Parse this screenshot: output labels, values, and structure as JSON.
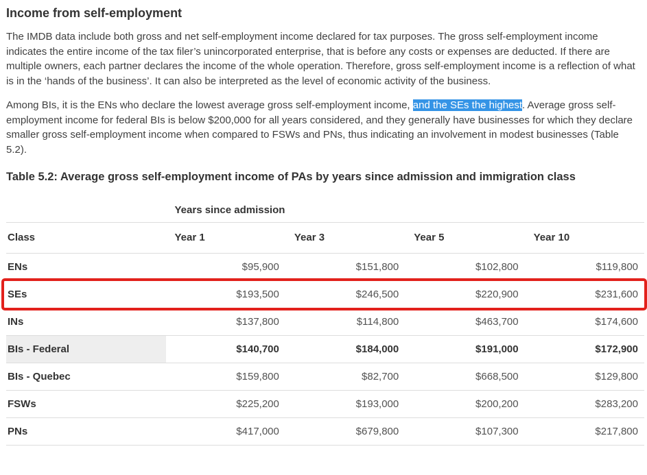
{
  "colors": {
    "selection_blue": "#3594e6",
    "annotation_red": "#e2211c",
    "hover_gray": "#eeeeee",
    "border_gray": "#dddddd"
  },
  "heading": "Income from self-employment",
  "paragraph1": "The IMDB data include both gross and net self-employment income declared for tax purposes. The gross self-employment income indicates the entire income of the tax filer’s unincorporated enterprise, that is before any costs or expenses are deducted. If there are multiple owners, each partner declares the income of the whole operation. Therefore, gross self-employment income is a reflection of what is in the ‘hands of the business’. It can also be interpreted as the level of economic activity of the business.",
  "paragraph2": {
    "before": "Among BIs, it is the ENs who declare the lowest average gross self-employment income, ",
    "highlighted": "and the SEs the highest",
    "after": ". Average gross self-employment income for federal BIs is below $200,000 for all years considered, and they generally have businesses for which they declare smaller gross self-employment income when compared to FSWs and PNs, thus indicating an involvement in modest businesses (Table 5.2)."
  },
  "table": {
    "title": "Table 5.2:  Average gross self-employment income of PAs by years since admission and immigration class",
    "group_header": "Years since admission",
    "columns": [
      "Class",
      "Year 1",
      "Year 3",
      "Year 5",
      "Year 10"
    ],
    "rows": [
      {
        "label": "ENs",
        "values": [
          "$95,900",
          "$151,800",
          "$102,800",
          "$119,800"
        ]
      },
      {
        "label": "SEs",
        "values": [
          "$193,500",
          "$246,500",
          "$220,900",
          "$231,600"
        ],
        "annotated": true
      },
      {
        "label": "INs",
        "values": [
          "$137,800",
          "$114,800",
          "$463,700",
          "$174,600"
        ]
      },
      {
        "label": "BIs - Federal",
        "values": [
          "$140,700",
          "$184,000",
          "$191,000",
          "$172,900"
        ],
        "emphasized": true
      },
      {
        "label": "BIs - Quebec",
        "values": [
          "$159,800",
          "$82,700",
          "$668,500",
          "$129,800"
        ]
      },
      {
        "label": "FSWs",
        "values": [
          "$225,200",
          "$193,000",
          "$200,200",
          "$283,200"
        ]
      },
      {
        "label": "PNs",
        "values": [
          "$417,000",
          "$679,800",
          "$107,300",
          "$217,800"
        ]
      }
    ]
  }
}
